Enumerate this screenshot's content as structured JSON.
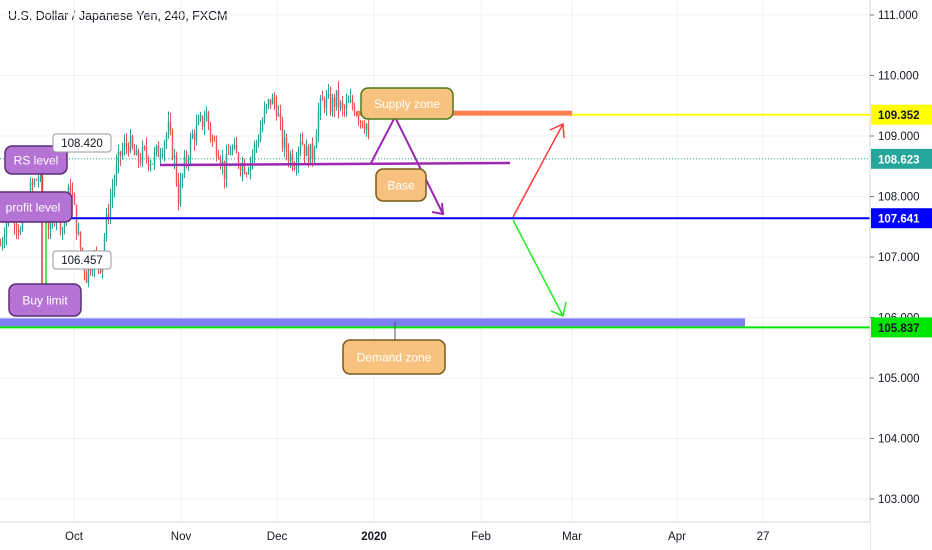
{
  "header": {
    "title": "U.S. Dollar / Japanese Yen, 240, FXCM"
  },
  "colors": {
    "bg": "#ffffff",
    "grid": "#eef0f4",
    "axis_line": "#d1d4dc",
    "axis_text": "#131722",
    "bull": "#26a69a",
    "bear": "#ef5350",
    "yellow_line": "#ffff00",
    "supply_bar": "#ff7f50",
    "blue_line": "#0000ff",
    "green_line": "#00e600",
    "purple": "#9c27b0",
    "demand_bar": "#7b7ff0",
    "bubble_orange": "#f7c27e",
    "bubble_border": "#4a7a1c",
    "bubble_purple": "#b673d6",
    "bubble_purple_border": "#5b2e74",
    "teal_tag": "#26a69a",
    "arrow_red": "#ff3b3b",
    "arrow_green": "#22ee22"
  },
  "chart_data": {
    "type": "candlestick",
    "title": "U.S. Dollar / Japanese Yen, 240, FXCM",
    "xlabel": "",
    "ylabel": "",
    "ylim": [
      102.5,
      111.3
    ],
    "y_ticks": [
      "111.000",
      "110.000",
      "109.000",
      "108.000",
      "107.000",
      "106.000",
      "105.000",
      "104.000",
      "103.000"
    ],
    "x_ticks": [
      "Oct",
      "Nov",
      "Dec",
      "2020",
      "Feb",
      "Mar",
      "Apr",
      "27"
    ],
    "series_path": [
      [
        0,
        107.2
      ],
      [
        10,
        107.9
      ],
      [
        20,
        107.4
      ],
      [
        30,
        108.1
      ],
      [
        38,
        108.35
      ],
      [
        44,
        107.8
      ],
      [
        50,
        107.4
      ],
      [
        56,
        107.9
      ],
      [
        62,
        107.5
      ],
      [
        70,
        108.2
      ],
      [
        78,
        107.3
      ],
      [
        86,
        106.7
      ],
      [
        92,
        107.0
      ],
      [
        100,
        106.9
      ],
      [
        108,
        107.8
      ],
      [
        114,
        108.3
      ],
      [
        120,
        108.7
      ],
      [
        128,
        108.9
      ],
      [
        136,
        108.6
      ],
      [
        144,
        108.7
      ],
      [
        152,
        108.6
      ],
      [
        160,
        108.8
      ],
      [
        168,
        109.1
      ],
      [
        174,
        108.6
      ],
      [
        178,
        108.0
      ],
      [
        184,
        108.5
      ],
      [
        192,
        109.0
      ],
      [
        200,
        109.2
      ],
      [
        206,
        109.35
      ],
      [
        212,
        108.9
      ],
      [
        218,
        108.8
      ],
      [
        224,
        108.4
      ],
      [
        230,
        108.8
      ],
      [
        238,
        108.6
      ],
      [
        246,
        108.5
      ],
      [
        252,
        108.7
      ],
      [
        258,
        109.0
      ],
      [
        264,
        109.35
      ],
      [
        270,
        109.6
      ],
      [
        276,
        109.5
      ],
      [
        282,
        108.9
      ],
      [
        288,
        108.7
      ],
      [
        294,
        108.6
      ],
      [
        300,
        109.0
      ],
      [
        306,
        108.7
      ],
      [
        312,
        108.7
      ],
      [
        318,
        109.4
      ],
      [
        324,
        109.6
      ],
      [
        330,
        109.5
      ],
      [
        336,
        109.6
      ],
      [
        342,
        109.4
      ],
      [
        348,
        109.5
      ],
      [
        354,
        109.5
      ],
      [
        360,
        109.3
      ],
      [
        366,
        109.2
      ],
      [
        370,
        108.6
      ]
    ],
    "horizontal_lines": [
      {
        "name": "supply",
        "price": 109.352,
        "label": "109.352",
        "color": "#ffff00"
      },
      {
        "name": "last",
        "price": 108.623,
        "label": "108.623",
        "color": "#26a69a"
      },
      {
        "name": "base",
        "price": 107.641,
        "label": "107.641",
        "color": "#0000ff"
      },
      {
        "name": "demand",
        "price": 105.837,
        "label": "105.837",
        "color": "#00e600"
      }
    ],
    "annotations": [
      {
        "text": "Supply zone"
      },
      {
        "text": "Base"
      },
      {
        "text": "Demand zone"
      },
      {
        "text": "RS level"
      },
      {
        "text": "profit level"
      },
      {
        "text": "Buy limit"
      },
      {
        "text": "108.420"
      },
      {
        "text": "106.457"
      }
    ]
  }
}
